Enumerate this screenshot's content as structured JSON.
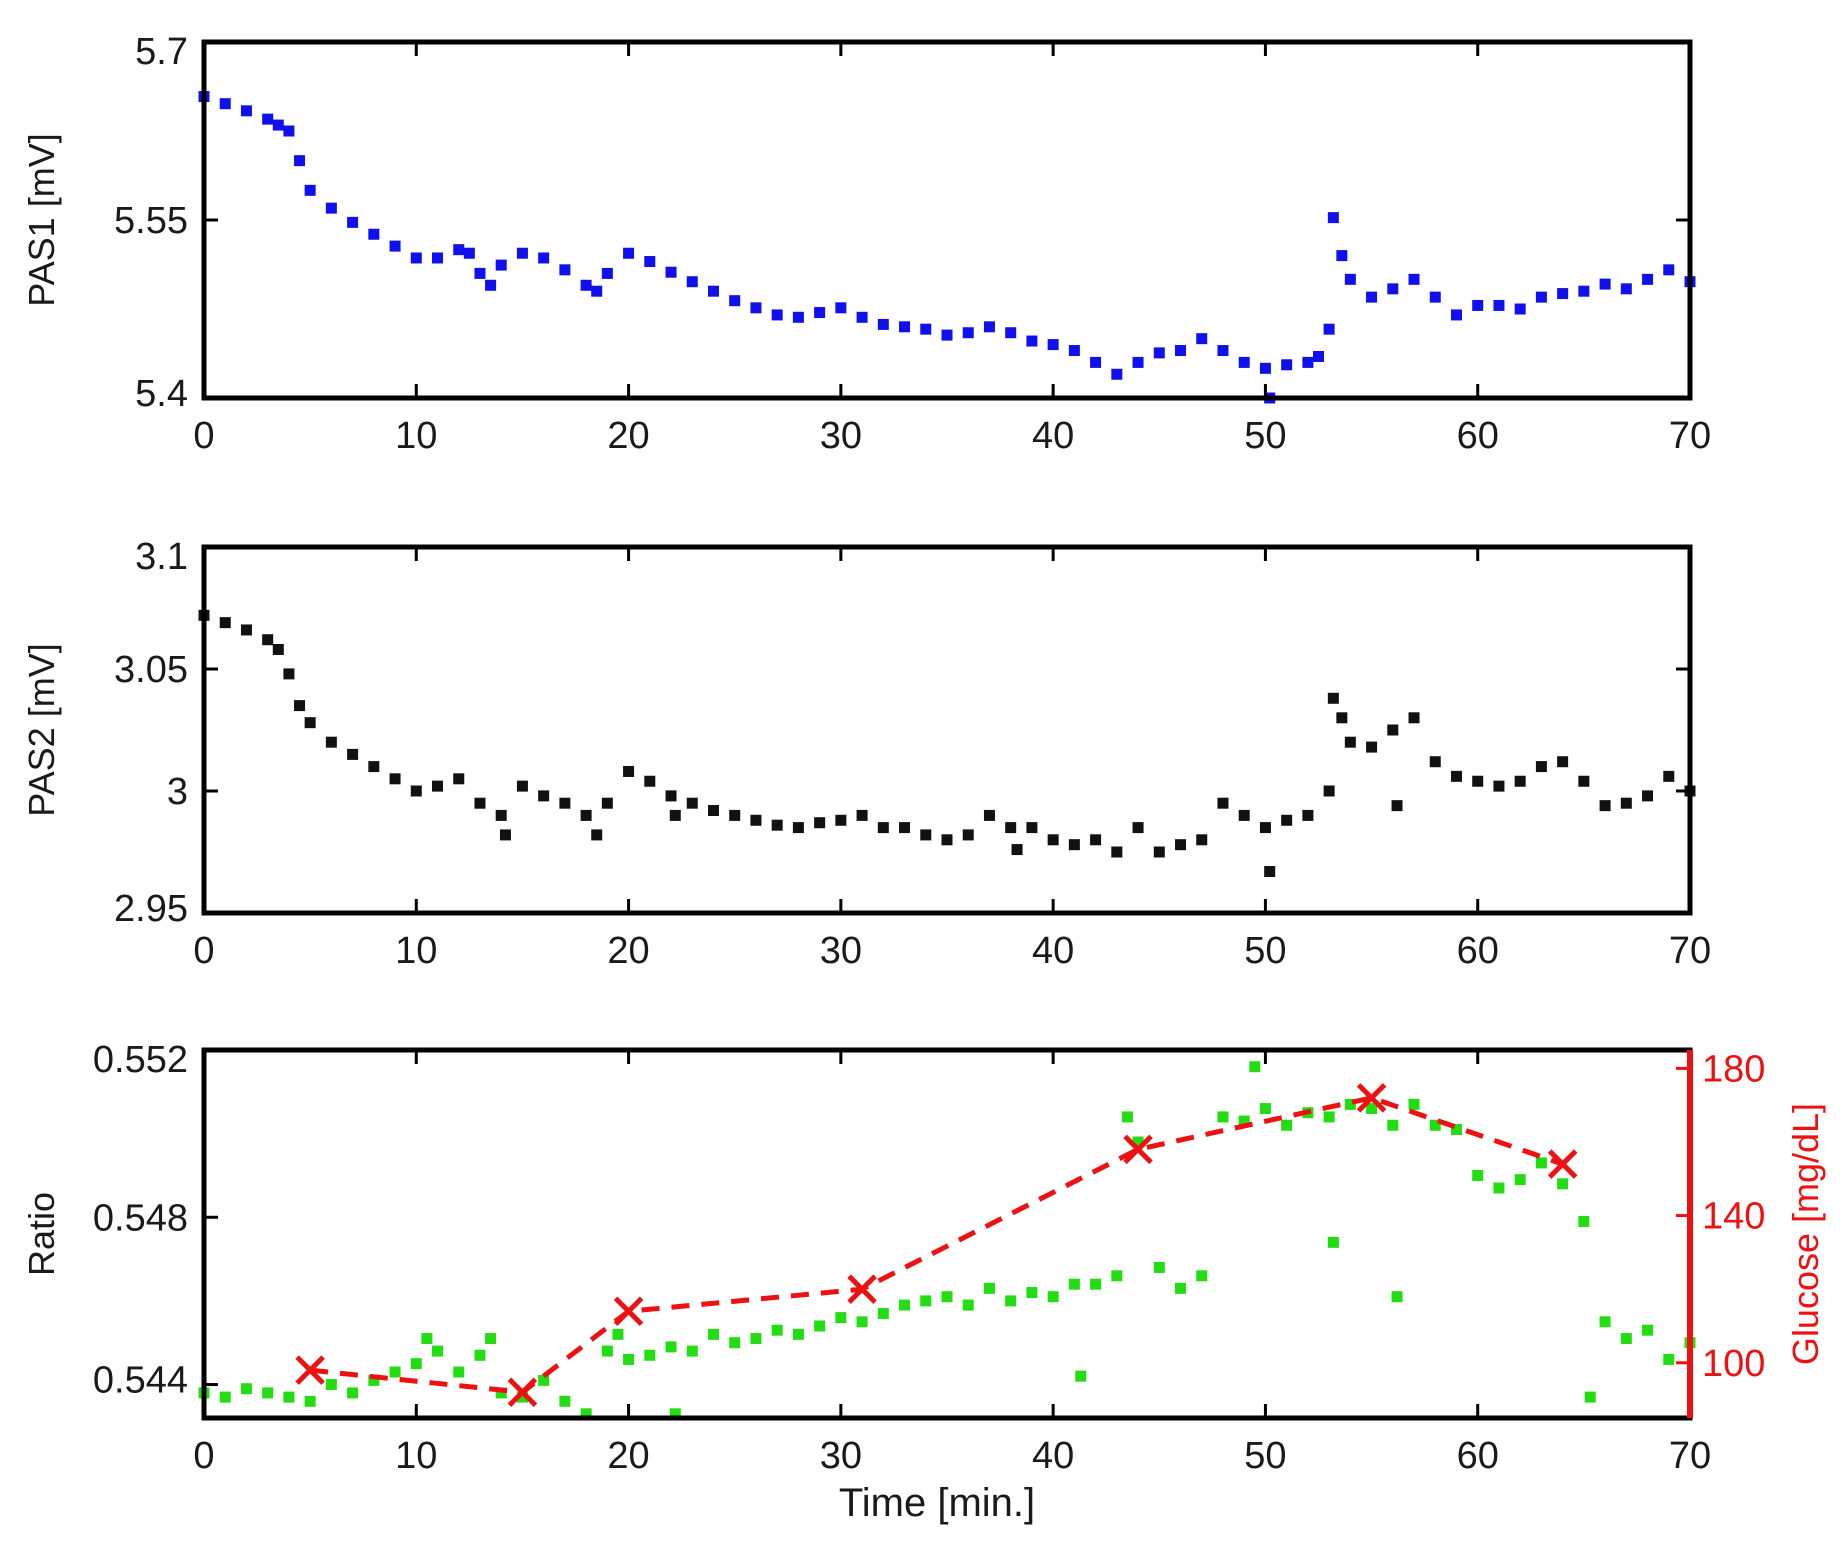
{
  "chart_data": [
    {
      "type": "scatter",
      "ylabel": "PAS1 [mV]",
      "xlim": [
        0,
        70
      ],
      "ylim": [
        5.4,
        5.7
      ],
      "xticks": [
        0,
        10,
        20,
        30,
        40,
        50,
        60,
        70
      ],
      "xtick_labels": [
        "0",
        "10",
        "20",
        "30",
        "40",
        "50",
        "60",
        "70"
      ],
      "yticks": [
        5.4,
        5.55,
        5.7
      ],
      "ytick_labels": [
        "5.4",
        "5.55",
        "5.7"
      ],
      "grid": false,
      "series": [
        {
          "color": "#1010ee",
          "marker": "square",
          "x": [
            0,
            1,
            2,
            3,
            3.5,
            4,
            4.5,
            5,
            6,
            7,
            8,
            9,
            10,
            11,
            12,
            12.5,
            13,
            13.5,
            14,
            15,
            16,
            17,
            18,
            18.5,
            19,
            20,
            21,
            22,
            23,
            24,
            25,
            26,
            27,
            28,
            29,
            30,
            31,
            32,
            33,
            34,
            35,
            36,
            37,
            38,
            39,
            40,
            41,
            42,
            43,
            44,
            45,
            46,
            47,
            48,
            49,
            50,
            50.2,
            51,
            52,
            52.5,
            53,
            53.2,
            53.6,
            54,
            55,
            56,
            57,
            58,
            59,
            60,
            61,
            62,
            63,
            64,
            65,
            66,
            67,
            68,
            69,
            70
          ],
          "y": [
            5.654,
            5.648,
            5.642,
            5.635,
            5.63,
            5.625,
            5.6,
            5.575,
            5.56,
            5.548,
            5.538,
            5.528,
            5.518,
            5.518,
            5.525,
            5.522,
            5.505,
            5.495,
            5.512,
            5.522,
            5.518,
            5.508,
            5.495,
            5.49,
            5.505,
            5.522,
            5.515,
            5.506,
            5.498,
            5.49,
            5.482,
            5.476,
            5.47,
            5.468,
            5.472,
            5.476,
            5.468,
            5.462,
            5.46,
            5.458,
            5.453,
            5.455,
            5.46,
            5.455,
            5.448,
            5.445,
            5.44,
            5.43,
            5.42,
            5.43,
            5.438,
            5.44,
            5.45,
            5.44,
            5.43,
            5.425,
            5.4,
            5.428,
            5.43,
            5.435,
            5.458,
            5.552,
            5.52,
            5.5,
            5.485,
            5.492,
            5.5,
            5.485,
            5.47,
            5.478,
            5.478,
            5.475,
            5.485,
            5.488,
            5.49,
            5.496,
            5.492,
            5.5,
            5.508,
            5.498
          ]
        }
      ]
    },
    {
      "type": "scatter",
      "ylabel": "PAS2 [mV]",
      "xlim": [
        0,
        70
      ],
      "ylim": [
        2.95,
        3.1
      ],
      "xticks": [
        0,
        10,
        20,
        30,
        40,
        50,
        60,
        70
      ],
      "xtick_labels": [
        "0",
        "10",
        "20",
        "30",
        "40",
        "50",
        "60",
        "70"
      ],
      "yticks": [
        2.95,
        3.0,
        3.05,
        3.1
      ],
      "ytick_labels": [
        "2.95",
        "3",
        "3.05",
        "3.1"
      ],
      "grid": false,
      "series": [
        {
          "color": "#111111",
          "marker": "square",
          "x": [
            0,
            1,
            2,
            3,
            3.5,
            4,
            4.5,
            5,
            6,
            7,
            8,
            9,
            10,
            11,
            12,
            13,
            14,
            14.2,
            15,
            16,
            17,
            18,
            18.5,
            19,
            20,
            21,
            22,
            22.2,
            23,
            24,
            25,
            26,
            27,
            28,
            29,
            30,
            31,
            32,
            33,
            34,
            35,
            36,
            37,
            38,
            38.3,
            39,
            40,
            41,
            42,
            43,
            44,
            45,
            46,
            47,
            48,
            49,
            50,
            50.2,
            51,
            52,
            53,
            53.2,
            53.6,
            54,
            55,
            56,
            56.2,
            57,
            58,
            59,
            60,
            61,
            62,
            63,
            64,
            65,
            66,
            67,
            68,
            69,
            70
          ],
          "y": [
            3.072,
            3.069,
            3.066,
            3.062,
            3.058,
            3.048,
            3.035,
            3.028,
            3.02,
            3.015,
            3.01,
            3.005,
            3.0,
            3.002,
            3.005,
            2.995,
            2.99,
            2.982,
            3.002,
            2.998,
            2.995,
            2.99,
            2.982,
            2.995,
            3.008,
            3.004,
            2.998,
            2.99,
            2.995,
            2.992,
            2.99,
            2.988,
            2.986,
            2.985,
            2.987,
            2.988,
            2.99,
            2.985,
            2.985,
            2.982,
            2.98,
            2.982,
            2.99,
            2.985,
            2.976,
            2.985,
            2.98,
            2.978,
            2.98,
            2.975,
            2.985,
            2.975,
            2.978,
            2.98,
            2.995,
            2.99,
            2.985,
            2.967,
            2.988,
            2.99,
            3.0,
            3.038,
            3.03,
            3.02,
            3.018,
            3.025,
            2.994,
            3.03,
            3.012,
            3.006,
            3.004,
            3.002,
            3.004,
            3.01,
            3.012,
            3.004,
            2.994,
            2.995,
            2.998,
            3.006,
            3.0
          ]
        }
      ]
    },
    {
      "type": "scatter",
      "xlabel": "Time [min.]",
      "ylabel": "Ratio",
      "ylabel_right": "Glucose [mg/dL]",
      "xlim": [
        0,
        70
      ],
      "ylim": [
        0.5432,
        0.552
      ],
      "ylim_right": [
        85,
        185
      ],
      "xticks": [
        0,
        10,
        20,
        30,
        40,
        50,
        60,
        70
      ],
      "xtick_labels": [
        "0",
        "10",
        "20",
        "30",
        "40",
        "50",
        "60",
        "70"
      ],
      "yticks": [
        0.544,
        0.548,
        0.552
      ],
      "ytick_labels": [
        "0.544",
        "0.548",
        "0.552"
      ],
      "yticks_right": [
        100,
        140,
        180
      ],
      "ytick_labels_right": [
        "100",
        "140",
        "180"
      ],
      "right_axis_color": "#ee1111",
      "grid": false,
      "series": [
        {
          "color": "#22dd11",
          "marker": "square",
          "axis": "left",
          "x": [
            0,
            1,
            2,
            3,
            4,
            5,
            6,
            7,
            8,
            9,
            10,
            10.5,
            11,
            12,
            13,
            13.5,
            14,
            15,
            16,
            17,
            18,
            19,
            19.5,
            20,
            21,
            22,
            22.2,
            23,
            24,
            25,
            26,
            27,
            28,
            29,
            30,
            31,
            32,
            33,
            34,
            35,
            36,
            37,
            38,
            39,
            40,
            41,
            41.3,
            42,
            43,
            43.5,
            44,
            45,
            46,
            47,
            48,
            49,
            49.5,
            50,
            51,
            52,
            53,
            53.2,
            54,
            55,
            56,
            56.2,
            57,
            58,
            59,
            60,
            61,
            62,
            63,
            64,
            65,
            65.3,
            66,
            67,
            68,
            69,
            70
          ],
          "y": [
            0.5438,
            0.5437,
            0.5439,
            0.5438,
            0.5437,
            0.5436,
            0.544,
            0.5438,
            0.5441,
            0.5443,
            0.5445,
            0.5451,
            0.5448,
            0.5443,
            0.5447,
            0.5451,
            0.5438,
            0.5437,
            0.5441,
            0.5436,
            0.5433,
            0.5448,
            0.5452,
            0.5446,
            0.5447,
            0.5449,
            0.5433,
            0.5448,
            0.5452,
            0.545,
            0.5451,
            0.5453,
            0.5452,
            0.5454,
            0.5456,
            0.5455,
            0.5457,
            0.5459,
            0.546,
            0.5461,
            0.5459,
            0.5463,
            0.546,
            0.5462,
            0.5461,
            0.5464,
            0.5442,
            0.5464,
            0.5466,
            0.5504,
            0.5498,
            0.5468,
            0.5463,
            0.5466,
            0.5504,
            0.5503,
            0.5516,
            0.5506,
            0.5502,
            0.5505,
            0.5504,
            0.5474,
            0.5507,
            0.5506,
            0.5502,
            0.5461,
            0.5507,
            0.5502,
            0.5501,
            0.549,
            0.5487,
            0.5489,
            0.5493,
            0.5488,
            0.5479,
            0.5437,
            0.5455,
            0.5451,
            0.5453,
            0.5446,
            0.545
          ]
        },
        {
          "color": "#ee1111",
          "marker": "x",
          "line": "dashed",
          "axis": "right",
          "x": [
            5,
            15,
            20,
            31,
            44,
            55,
            64
          ],
          "y": [
            98,
            92,
            114,
            120,
            158,
            172,
            154
          ]
        }
      ]
    }
  ]
}
